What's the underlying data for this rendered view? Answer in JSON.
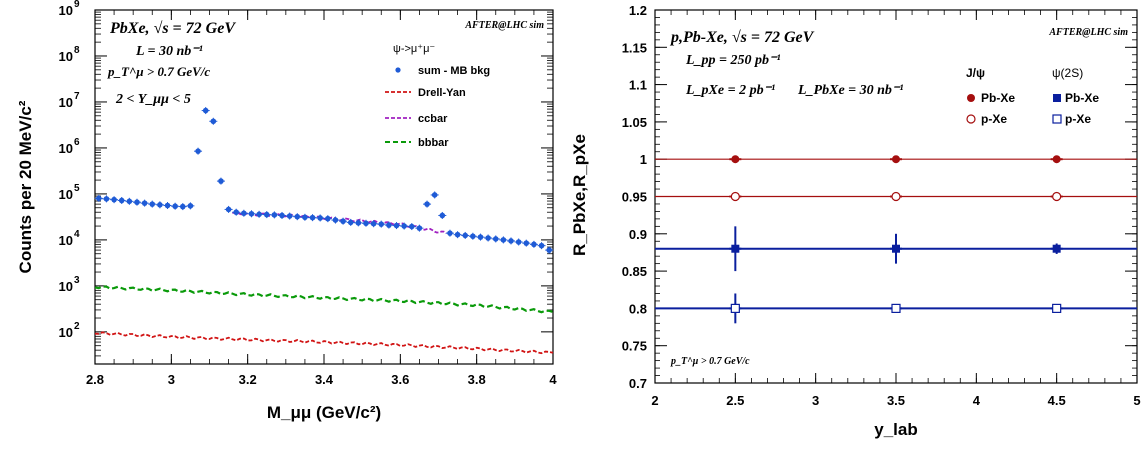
{
  "colors": {
    "sum": "#1f5bd6",
    "drell_yan": "#d11414",
    "ccbar": "#a020c0",
    "bbbar": "#0a9a0a",
    "pbxe": "#a50f0f",
    "psi2s": "#0a1f9e",
    "axis": "#000000"
  },
  "chart_data": [
    {
      "type": "scatter",
      "id": "mass-spectrum",
      "title": "PbXe,  √s = 72 GeV",
      "tag": "AFTER@LHC sim",
      "lumi": "L = 30 nb⁻¹",
      "cut_pt": "p_T^μ > 0.7 GeV/c",
      "cut_y": "2 < Y_μμ < 5",
      "legend_header": "ψ->μ⁺μ⁻",
      "legend_placement": "top-right",
      "xlabel": "M_μμ (GeV/c²)",
      "ylabel": "Counts per 20 MeV/c²",
      "xlim": [
        2.8,
        4.0
      ],
      "ylim": [
        20,
        1000000000
      ],
      "yscale": "log",
      "x_ticks": [
        "2.8",
        "3",
        "3.2",
        "3.4",
        "3.6",
        "3.8",
        "4"
      ],
      "y_ticks": [
        "10²",
        "10³",
        "10⁴",
        "10⁵",
        "10⁶",
        "10⁷",
        "10⁸",
        "10⁹"
      ],
      "series": [
        {
          "name": "sum - MB bkg",
          "style": "points",
          "x": [
            2.81,
            2.83,
            2.85,
            2.87,
            2.89,
            2.91,
            2.93,
            2.95,
            2.97,
            2.99,
            3.01,
            3.03,
            3.05,
            3.07,
            3.09,
            3.11,
            3.13,
            3.15,
            3.17,
            3.19,
            3.21,
            3.23,
            3.25,
            3.27,
            3.29,
            3.31,
            3.33,
            3.35,
            3.37,
            3.39,
            3.41,
            3.43,
            3.45,
            3.47,
            3.49,
            3.51,
            3.53,
            3.55,
            3.57,
            3.59,
            3.61,
            3.63,
            3.65,
            3.67,
            3.69,
            3.71,
            3.73,
            3.75,
            3.77,
            3.79,
            3.81,
            3.83,
            3.85,
            3.87,
            3.89,
            3.91,
            3.93,
            3.95,
            3.97,
            3.99
          ],
          "y": [
            80000,
            78000,
            75000,
            72000,
            69000,
            66000,
            63000,
            60000,
            58000,
            56000,
            54000,
            53000,
            55000,
            850000,
            6500000,
            3800000,
            190000,
            46000,
            40000,
            38000,
            37000,
            36000,
            35500,
            35000,
            34000,
            33000,
            32000,
            31000,
            30500,
            30000,
            29000,
            27000,
            25500,
            24000,
            23500,
            23000,
            22500,
            22000,
            21000,
            20500,
            20000,
            19500,
            18000,
            60000,
            95000,
            34000,
            14000,
            13000,
            12500,
            12000,
            11500,
            11000,
            10500,
            10000,
            9500,
            9000,
            8500,
            8000,
            7500,
            6000
          ]
        },
        {
          "name": "Drell-Yan",
          "style": "dashed",
          "x": [
            2.8,
            3.0,
            3.2,
            3.4,
            3.6,
            3.8,
            4.0
          ],
          "y": [
            95,
            78,
            68,
            60,
            52,
            43,
            35
          ]
        },
        {
          "name": "ccbar",
          "style": "dashed",
          "x": [
            3.16,
            3.3,
            3.45,
            3.6,
            3.72
          ],
          "y": [
            38000,
            34000,
            28000,
            22000,
            14000
          ]
        },
        {
          "name": "bbbar",
          "style": "dashed",
          "x": [
            2.8,
            3.0,
            3.2,
            3.4,
            3.6,
            3.8,
            4.0
          ],
          "y": [
            950,
            800,
            650,
            550,
            470,
            380,
            270
          ]
        }
      ]
    },
    {
      "type": "scatter",
      "id": "r-ratio",
      "title": "p,Pb-Xe,  √s = 72 GeV",
      "tag": "AFTER@LHC sim",
      "lumi_pp": "L_pp = 250 pb⁻¹",
      "lumi_pxe": "L_pXe = 2 pb⁻¹",
      "lumi_pbxe": "L_PbXe = 30 nb⁻¹",
      "cut_pt": "p_T^μ > 0.7 GeV/c",
      "legend_header_jpsi": "J/ψ",
      "legend_header_psi2s": "ψ(2S)",
      "legend_placement": "top-right",
      "xlabel": "y_lab",
      "ylabel": "R_PbXe,R_pXe",
      "xlim": [
        2,
        5
      ],
      "ylim": [
        0.7,
        1.2
      ],
      "x_ticks": [
        "2",
        "2.5",
        "3",
        "3.5",
        "4",
        "4.5",
        "5"
      ],
      "y_ticks": [
        "0.7",
        "0.75",
        "0.8",
        "0.85",
        "0.9",
        "0.95",
        "1",
        "1.05",
        "1.1",
        "1.15",
        "1.2"
      ],
      "series": [
        {
          "name": "Pb-Xe",
          "group": "J/ψ",
          "marker": "filled-circle",
          "level": 1.0,
          "x": [
            2.5,
            3.5,
            4.5
          ],
          "y": [
            1.0,
            1.0,
            1.0
          ],
          "err": [
            0.005,
            0.002,
            0.002
          ]
        },
        {
          "name": "p-Xe",
          "group": "J/ψ",
          "marker": "open-circle",
          "level": 0.95,
          "x": [
            2.5,
            3.5,
            4.5
          ],
          "y": [
            0.95,
            0.95,
            0.95
          ],
          "err": [
            0.004,
            0.002,
            0.002
          ]
        },
        {
          "name": "Pb-Xe",
          "group": "ψ(2S)",
          "marker": "filled-square",
          "level": 0.88,
          "x": [
            2.5,
            3.5,
            4.5
          ],
          "y": [
            0.88,
            0.88,
            0.88
          ],
          "err": [
            0.03,
            0.02,
            0.007
          ]
        },
        {
          "name": "p-Xe",
          "group": "ψ(2S)",
          "marker": "open-square",
          "level": 0.8,
          "x": [
            2.5,
            3.5,
            4.5
          ],
          "y": [
            0.8,
            0.8,
            0.8
          ],
          "err": [
            0.02,
            0.005,
            0.005
          ]
        }
      ]
    }
  ]
}
